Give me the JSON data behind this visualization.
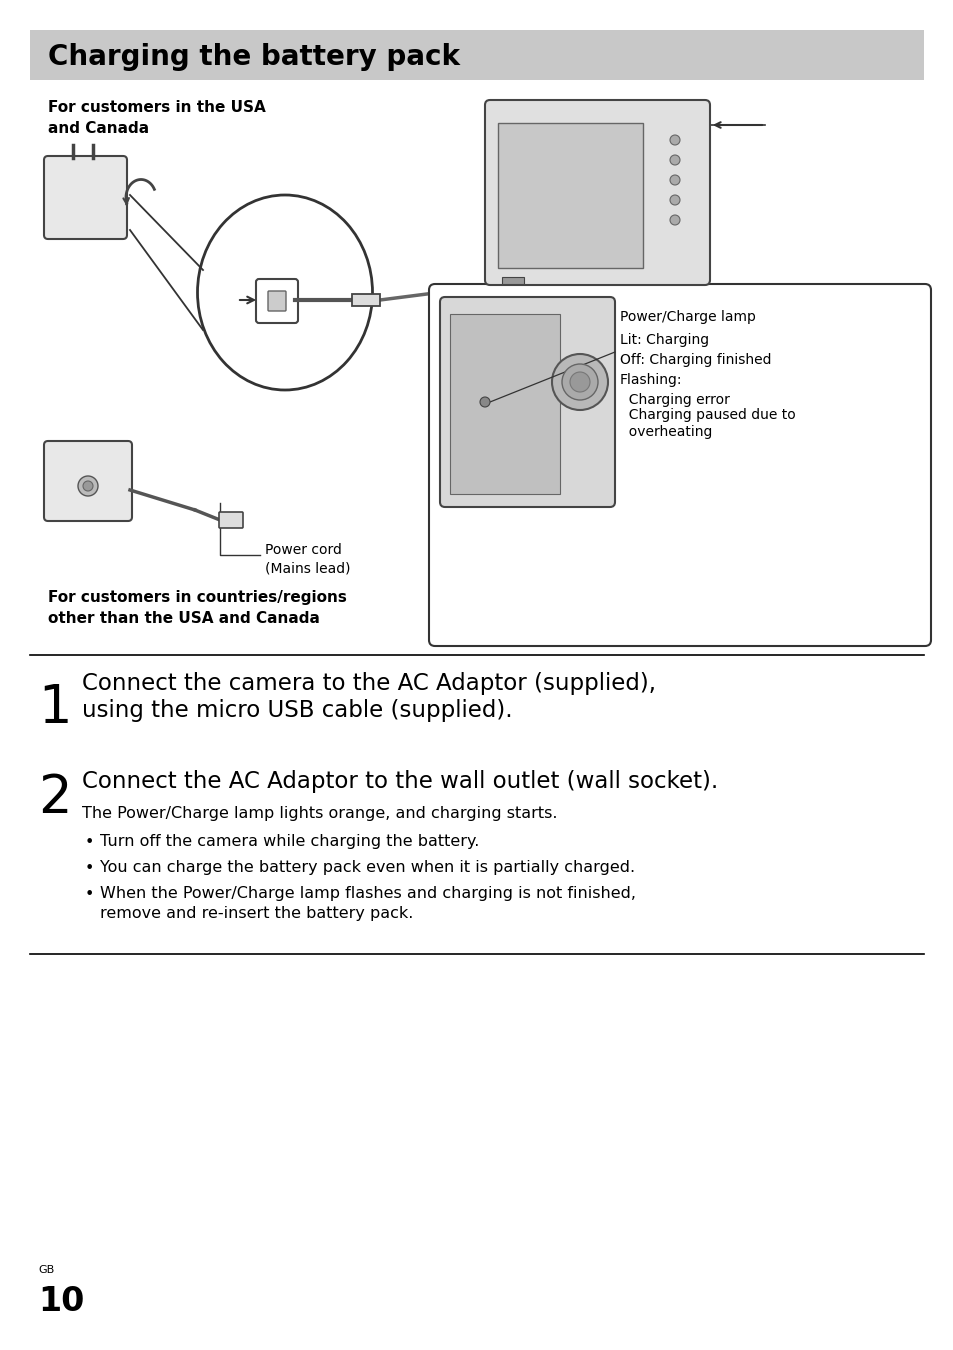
{
  "title": "Charging the battery pack",
  "title_bg_color": "#c8c8c8",
  "title_font_size": 20,
  "page_bg_color": "#ffffff",
  "diagram": {
    "label_usa": "For customers in the USA\nand Canada",
    "label_other": "For customers in countries/regions\nother than the USA and Canada",
    "power_cord_label": "Power cord\n(Mains lead)",
    "box_text_lines": [
      "Power/Charge lamp",
      "Lit: Charging",
      "Off: Charging finished",
      "Flashing:",
      "  Charging error",
      "  Charging paused due to",
      "  overheating"
    ]
  },
  "step1_number": "1",
  "step1_line1": "Connect the camera to the AC Adaptor (supplied),",
  "step1_line2": "using the micro USB cable (supplied).",
  "step2_number": "2",
  "step2_line1": "Connect the AC Adaptor to the wall outlet (wall socket).",
  "step2_desc": "The Power/Charge lamp lights orange, and charging starts.",
  "step2_bullets": [
    "Turn off the camera while charging the battery.",
    "You can charge the battery pack even when it is partially charged.",
    "When the Power/Charge lamp flashes and charging is not finished,\nremove and re-insert the battery pack."
  ],
  "footer_gb": "GB",
  "footer_page": "10",
  "divider_color": "#000000",
  "text_color": "#000000"
}
